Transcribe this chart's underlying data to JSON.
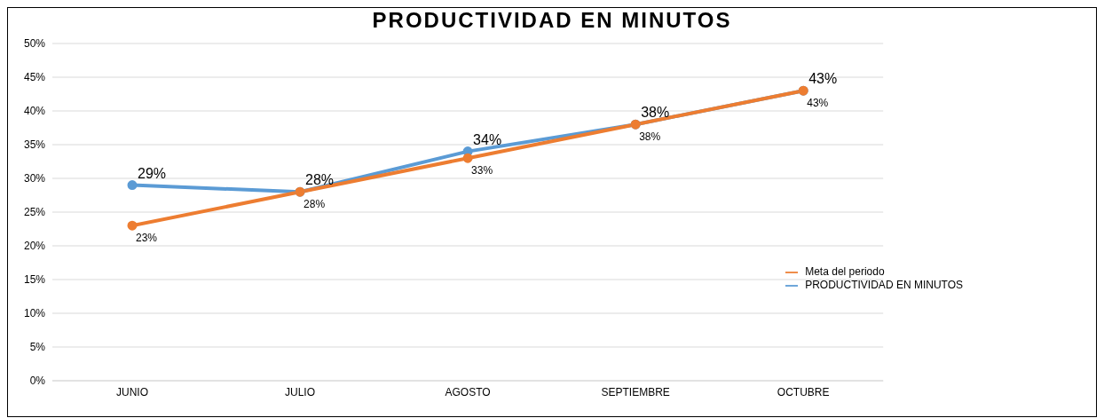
{
  "chart_data": {
    "type": "line",
    "title": "PRODUCTIVIDAD EN MINUTOS",
    "categories": [
      "JUNIO",
      "JULIO",
      "AGOSTO",
      "SEPTIEMBRE",
      "OCTUBRE"
    ],
    "series": [
      {
        "name": "PRODUCTIVIDAD EN MINUTOS",
        "color": "#5b9bd5",
        "values": [
          29,
          28,
          34,
          38,
          43
        ],
        "value_labels": [
          "29%",
          "28%",
          "34%",
          "38%",
          "43%"
        ]
      },
      {
        "name": "Meta del periodo",
        "color": "#ed7d31",
        "values": [
          23,
          28,
          33,
          38,
          43
        ],
        "value_labels": [
          "23%",
          "28%",
          "33%",
          "38%",
          "43%"
        ]
      }
    ],
    "ylim": [
      0,
      50
    ],
    "yticks": [
      {
        "value": 0,
        "label": "0%"
      },
      {
        "value": 5,
        "label": "5%"
      },
      {
        "value": 10,
        "label": "10%"
      },
      {
        "value": 15,
        "label": "15%"
      },
      {
        "value": 20,
        "label": "20%"
      },
      {
        "value": 25,
        "label": "25%"
      },
      {
        "value": 30,
        "label": "30%"
      },
      {
        "value": 35,
        "label": "35%"
      },
      {
        "value": 40,
        "label": "40%"
      },
      {
        "value": 45,
        "label": "45%"
      },
      {
        "value": 50,
        "label": "50%"
      }
    ],
    "grid": "y",
    "legend": "right",
    "marker": "circle",
    "line_style": "solid"
  }
}
